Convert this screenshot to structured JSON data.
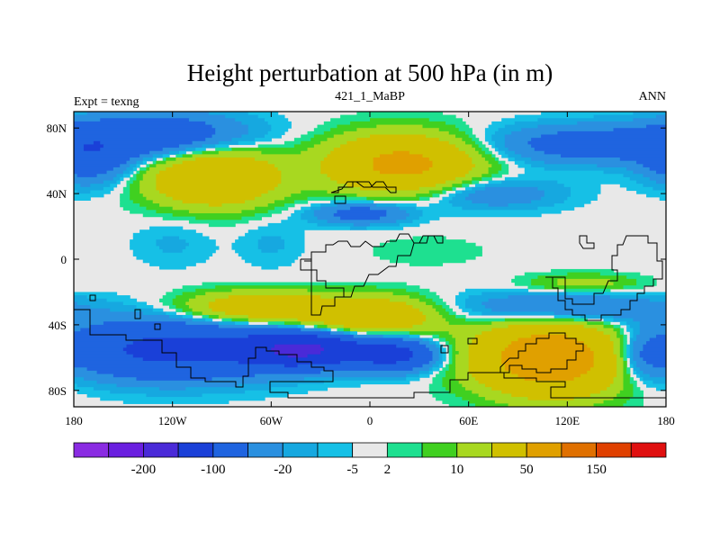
{
  "chart_data": {
    "type": "heatmap",
    "title": "Height perturbation at 500 hPa (in m)",
    "left_label": "Expt = texng",
    "center_label": "421_1_MaBP",
    "right_label": "ANN",
    "x_range": [
      -180,
      180
    ],
    "y_range": [
      -90,
      90
    ],
    "x_ticks": [
      {
        "value": -180,
        "label": "180"
      },
      {
        "value": -120,
        "label": "120W"
      },
      {
        "value": -60,
        "label": "60W"
      },
      {
        "value": 0,
        "label": "0"
      },
      {
        "value": 60,
        "label": "60E"
      },
      {
        "value": 120,
        "label": "120E"
      },
      {
        "value": 180,
        "label": "180"
      }
    ],
    "y_ticks": [
      {
        "value": 80,
        "label": "80N"
      },
      {
        "value": 40,
        "label": "40N"
      },
      {
        "value": 0,
        "label": "0"
      },
      {
        "value": -40,
        "label": "40S"
      },
      {
        "value": -80,
        "label": "80S"
      }
    ],
    "colorbar": {
      "colors": [
        "#8a2be2",
        "#6a1fe0",
        "#4a2ad8",
        "#1a40d8",
        "#1f64e0",
        "#2a90e0",
        "#16a8e0",
        "#16c0e6",
        "#e8e8e8",
        "#1ee090",
        "#40d020",
        "#a8d820",
        "#d0c000",
        "#e0a000",
        "#e07000",
        "#e04000",
        "#e01010"
      ],
      "labels": [
        {
          "after_index": 1,
          "label": "-200"
        },
        {
          "after_index": 3,
          "label": "-100"
        },
        {
          "after_index": 5,
          "label": "-20"
        },
        {
          "after_index": 7,
          "label": "-5"
        },
        {
          "after_index": 8,
          "label": "2"
        },
        {
          "after_index": 10,
          "label": "10"
        },
        {
          "after_index": 12,
          "label": "50"
        },
        {
          "after_index": 14,
          "label": "150"
        }
      ]
    },
    "field": {
      "background_level": 0,
      "anomalies": [
        {
          "lon": -130,
          "lat": 75,
          "rx": 55,
          "ry": 14,
          "amp": -40
        },
        {
          "lon": -170,
          "lat": 60,
          "rx": 25,
          "ry": 15,
          "amp": -30
        },
        {
          "lon": 130,
          "lat": 70,
          "rx": 60,
          "ry": 12,
          "amp": -30
        },
        {
          "lon": 70,
          "lat": 40,
          "rx": 45,
          "ry": 10,
          "amp": -20
        },
        {
          "lon": -5,
          "lat": 28,
          "rx": 30,
          "ry": 7,
          "amp": -30
        },
        {
          "lon": -95,
          "lat": 50,
          "rx": 40,
          "ry": 18,
          "amp": 50
        },
        {
          "lon": 20,
          "lat": 58,
          "rx": 45,
          "ry": 18,
          "amp": 60
        },
        {
          "lon": 35,
          "lat": 5,
          "rx": 40,
          "ry": 10,
          "amp": 4
        },
        {
          "lon": -120,
          "lat": 10,
          "rx": 25,
          "ry": 15,
          "amp": -6
        },
        {
          "lon": -60,
          "lat": 10,
          "rx": 20,
          "ry": 15,
          "amp": -6
        },
        {
          "lon": -70,
          "lat": -30,
          "rx": 45,
          "ry": 10,
          "amp": 40
        },
        {
          "lon": 0,
          "lat": -35,
          "rx": 40,
          "ry": 12,
          "amp": 45
        },
        {
          "lon": -120,
          "lat": -55,
          "rx": 70,
          "ry": 18,
          "amp": -60
        },
        {
          "lon": -40,
          "lat": -55,
          "rx": 35,
          "ry": 10,
          "amp": -100
        },
        {
          "lon": 15,
          "lat": -58,
          "rx": 25,
          "ry": 10,
          "amp": -60
        },
        {
          "lon": 110,
          "lat": -60,
          "rx": 45,
          "ry": 22,
          "amp": 80
        },
        {
          "lon": 115,
          "lat": -30,
          "rx": 60,
          "ry": 10,
          "amp": -30
        },
        {
          "lon": 165,
          "lat": -60,
          "rx": 15,
          "ry": 15,
          "amp": -20
        },
        {
          "lon": 130,
          "lat": -15,
          "rx": 35,
          "ry": 6,
          "amp": 15
        }
      ]
    }
  }
}
